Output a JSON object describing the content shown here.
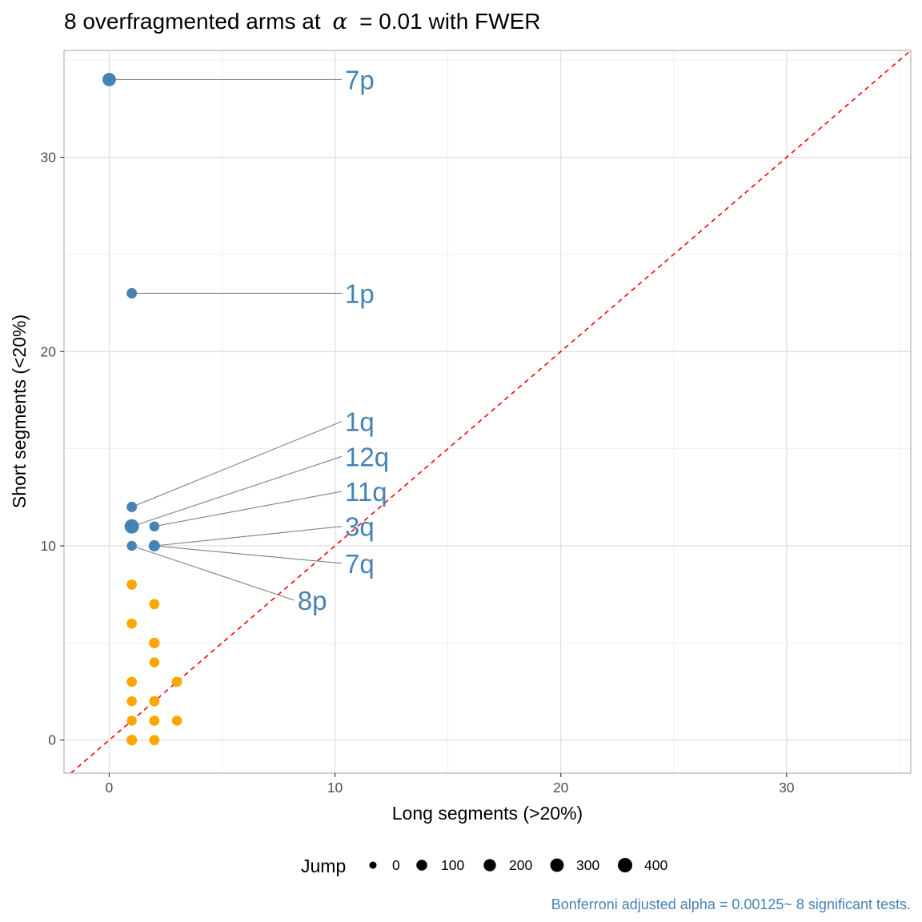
{
  "chart_data": {
    "type": "scatter",
    "title_prefix": "8 overfragmented arms at",
    "title_symbol": "α",
    "title_suffix": "= 0.01 with FWER",
    "xlabel": "Long segments (>20%)",
    "ylabel": "Short segments (<20%)",
    "xlim": [
      -2,
      35.5
    ],
    "ylim": [
      -1.7,
      35.5
    ],
    "x_ticks": [
      0,
      10,
      20,
      30
    ],
    "y_ticks": [
      0,
      10,
      20,
      30
    ],
    "grid": true,
    "reference_line": {
      "type": "y=x",
      "color": "#FF0000",
      "dashed": true
    },
    "colors": {
      "significant": "#4682B4",
      "not_significant": "#FFA500",
      "label_line": "#808080",
      "grid": "#EBEBEB",
      "panel_border": "#B3B3B3"
    },
    "significant_points": [
      {
        "label": "7p",
        "x": 0,
        "y": 34,
        "jump": 300,
        "label_x": 10.3,
        "label_y": 34
      },
      {
        "label": "1p",
        "x": 1,
        "y": 23,
        "jump": 80,
        "label_x": 10.3,
        "label_y": 23
      },
      {
        "label": "1q",
        "x": 1,
        "y": 12,
        "jump": 80,
        "label_x": 10.3,
        "label_y": 16.4
      },
      {
        "label": "12q",
        "x": 1,
        "y": 11,
        "jump": 400,
        "label_x": 10.3,
        "label_y": 14.6
      },
      {
        "label": "11q",
        "x": 2,
        "y": 11,
        "jump": 60,
        "label_x": 10.3,
        "label_y": 12.8
      },
      {
        "label": "3q",
        "x": 2,
        "y": 10,
        "jump": 120,
        "label_x": 10.3,
        "label_y": 11
      },
      {
        "label": "7q",
        "x": 2,
        "y": 10,
        "jump": 120,
        "label_x": 10.3,
        "label_y": 9.1
      },
      {
        "label": "8p",
        "x": 1,
        "y": 10,
        "jump": 60,
        "label_x": 8.2,
        "label_y": 7.2
      }
    ],
    "other_points": [
      {
        "x": 1,
        "y": 8,
        "jump": 70
      },
      {
        "x": 2,
        "y": 7,
        "jump": 70
      },
      {
        "x": 1,
        "y": 6,
        "jump": 60
      },
      {
        "x": 2,
        "y": 5,
        "jump": 90
      },
      {
        "x": 2,
        "y": 4,
        "jump": 60
      },
      {
        "x": 1,
        "y": 3,
        "jump": 70
      },
      {
        "x": 3,
        "y": 3,
        "jump": 70
      },
      {
        "x": 1,
        "y": 2,
        "jump": 60
      },
      {
        "x": 2,
        "y": 2,
        "jump": 70
      },
      {
        "x": 1,
        "y": 1,
        "jump": 60
      },
      {
        "x": 2,
        "y": 1,
        "jump": 70
      },
      {
        "x": 3,
        "y": 1,
        "jump": 60
      },
      {
        "x": 1,
        "y": 0,
        "jump": 90
      },
      {
        "x": 2,
        "y": 0,
        "jump": 70
      }
    ],
    "legend": {
      "title": "Jump",
      "placement": "bottom",
      "entries": [
        {
          "label": "0",
          "jump": 0
        },
        {
          "label": "100",
          "jump": 100
        },
        {
          "label": "200",
          "jump": 200
        },
        {
          "label": "300",
          "jump": 300
        },
        {
          "label": "400",
          "jump": 400
        }
      ]
    },
    "caption": "Bonferroni adjusted alpha = 0.00125~ 8 significant tests."
  }
}
